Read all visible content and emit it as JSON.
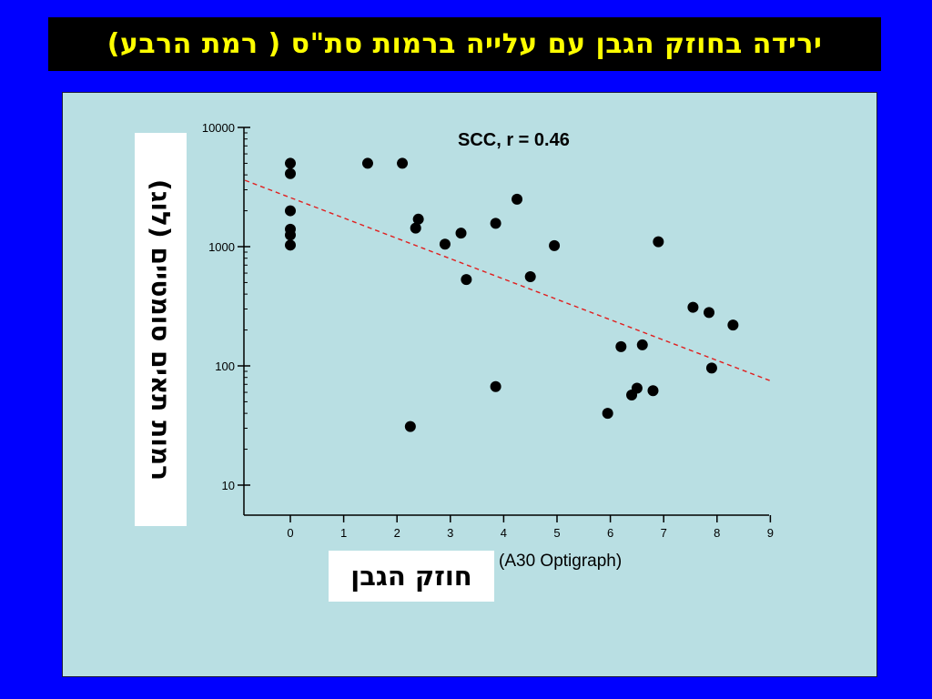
{
  "slide": {
    "title": "ירידה בחוזק הגבן עם עלייה ברמות סת\"ס ( רמת הרבע)"
  },
  "chart_data": {
    "type": "scatter",
    "annotation": "SCC, r = 0.46",
    "ylabel": "רמות תאים סומטיים (לוג)",
    "xlabel": "חוזק הגבן",
    "xlabel_sub": "(A30 Optigraph)",
    "xlim": [
      -0.9,
      9
    ],
    "ylim": [
      7,
      10000
    ],
    "y_scale": "log",
    "x_ticks": [
      0,
      1,
      2,
      3,
      4,
      5,
      6,
      7,
      8,
      9
    ],
    "y_ticks": [
      10,
      100,
      1000,
      10000
    ],
    "y_tick_labels": [
      "10",
      "100",
      "1000",
      "10000"
    ],
    "points": [
      {
        "x": 0,
        "y": 5000
      },
      {
        "x": 0,
        "y": 4100
      },
      {
        "x": 0,
        "y": 2000
      },
      {
        "x": 0,
        "y": 1400
      },
      {
        "x": 0,
        "y": 1250
      },
      {
        "x": 0,
        "y": 1030
      },
      {
        "x": 1.45,
        "y": 5000
      },
      {
        "x": 2.1,
        "y": 5000
      },
      {
        "x": 2.25,
        "y": 31
      },
      {
        "x": 2.35,
        "y": 1430
      },
      {
        "x": 2.4,
        "y": 1700
      },
      {
        "x": 2.9,
        "y": 1050
      },
      {
        "x": 3.2,
        "y": 1300
      },
      {
        "x": 3.3,
        "y": 530
      },
      {
        "x": 3.85,
        "y": 1570
      },
      {
        "x": 3.85,
        "y": 67
      },
      {
        "x": 4.25,
        "y": 2500
      },
      {
        "x": 4.5,
        "y": 560
      },
      {
        "x": 4.95,
        "y": 1020
      },
      {
        "x": 5.95,
        "y": 40
      },
      {
        "x": 6.2,
        "y": 145
      },
      {
        "x": 6.4,
        "y": 57
      },
      {
        "x": 6.5,
        "y": 65
      },
      {
        "x": 6.6,
        "y": 150
      },
      {
        "x": 6.8,
        "y": 62
      },
      {
        "x": 6.9,
        "y": 1100
      },
      {
        "x": 7.55,
        "y": 310
      },
      {
        "x": 7.85,
        "y": 280
      },
      {
        "x": 7.9,
        "y": 96
      },
      {
        "x": 8.3,
        "y": 220
      }
    ],
    "trendline": {
      "x": [
        -0.85,
        9
      ],
      "y": [
        3600,
        75
      ]
    },
    "colors": {
      "background": "#0000ff",
      "plot_bg": "#b9dfe3",
      "title_bg": "#000000",
      "title_text": "#ffff00",
      "points": "#000000",
      "trendline": "#e02020"
    }
  }
}
